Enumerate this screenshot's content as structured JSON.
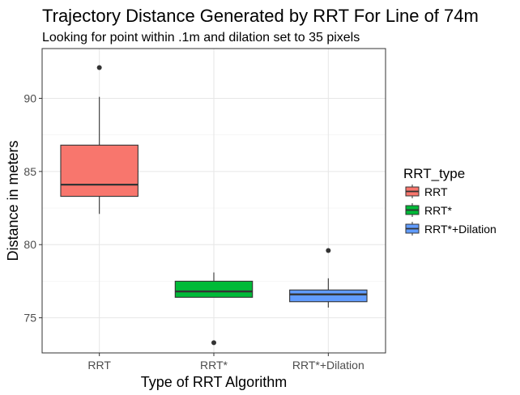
{
  "chart_data": {
    "type": "boxplot",
    "title": "Trajectory Distance Generated by RRT For Line of 74m",
    "subtitle": "Looking for point within .1m and dilation set to 35 pixels",
    "xlabel": "Type of RRT Algorithm",
    "ylabel": "Distance in meters",
    "categories": [
      "RRT",
      "RRT*",
      "RRT*+Dilation"
    ],
    "ylim": [
      72.6,
      93.4
    ],
    "yticks": [
      75,
      80,
      85,
      90
    ],
    "grid": true,
    "legend": {
      "title": "RRT_type",
      "position": "right",
      "entries": [
        "RRT",
        "RRT*",
        "RRT*+Dilation"
      ]
    },
    "series": [
      {
        "category": "RRT",
        "color": "#F8766D",
        "whisker_low": 82.1,
        "q1": 83.3,
        "median": 84.1,
        "q3": 86.8,
        "whisker_high": 90.1,
        "outliers": [
          92.1
        ]
      },
      {
        "category": "RRT*",
        "color": "#00BA38",
        "whisker_low": 76.4,
        "q1": 76.4,
        "median": 76.8,
        "q3": 77.5,
        "whisker_high": 78.1,
        "outliers": [
          73.3
        ]
      },
      {
        "category": "RRT*+Dilation",
        "color": "#619CFF",
        "whisker_low": 75.7,
        "q1": 76.1,
        "median": 76.6,
        "q3": 76.9,
        "whisker_high": 77.7,
        "outliers": [
          79.6
        ]
      }
    ]
  }
}
